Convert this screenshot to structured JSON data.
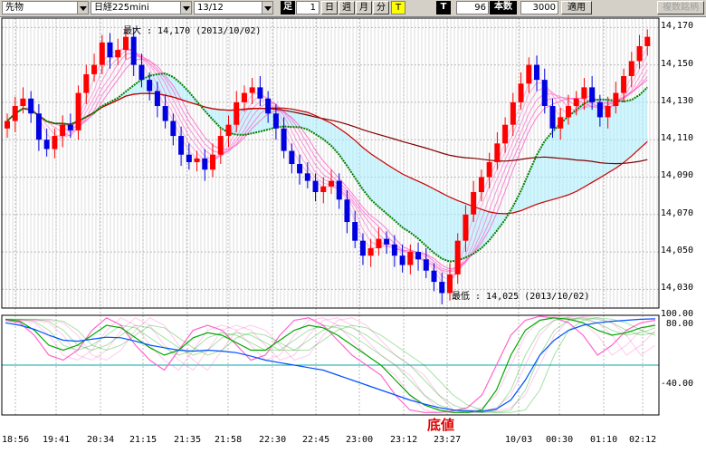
{
  "toolbar": {
    "market": "先物",
    "symbol": "日経225mini",
    "contract": "13/12",
    "bar_label": "足",
    "bar_value": "1",
    "tabs": [
      "日",
      "週",
      "月",
      "分"
    ],
    "t_button": "T",
    "t_label": "T",
    "count_value": "96",
    "count_label": "本数",
    "count2_value": "3000",
    "apply_label": "適用",
    "multi_label": "複数銘柄"
  },
  "annotations": {
    "max_label": "最大 : 14,170 (2013/10/02)",
    "min_label": "最低 : 14,025 (2013/10/02)",
    "bottom_label": "底値"
  },
  "colors": {
    "up_candle": "#ff0000",
    "down_candle": "#0000e0",
    "ma_short": "#ff66cc",
    "ma_medium": "#008000",
    "ma_long": "#cc0000",
    "ma_longest": "#800000",
    "fill": "#aaf0ff"
  },
  "chart_data": [
    {
      "type": "candlestick",
      "ylim": [
        14020,
        14175
      ],
      "y_ticks": [
        "14,170",
        "14,150",
        "14,130",
        "14,110",
        "14,090",
        "14,070",
        "14,050",
        "14,030"
      ],
      "x_ticks": [
        "18:56",
        "19:41",
        "20:34",
        "21:15",
        "21:35",
        "21:58",
        "22:30",
        "22:45",
        "23:00",
        "23:12",
        "23:27",
        "10/03",
        "00:30",
        "01:10",
        "02:12"
      ],
      "close": [
        14120,
        14128,
        14132,
        14124,
        14110,
        14105,
        14112,
        14118,
        14115,
        14135,
        14145,
        14150,
        14162,
        14154,
        14158,
        14165,
        14150,
        14142,
        14136,
        14128,
        14120,
        14112,
        14102,
        14098,
        14100,
        14094,
        14102,
        14112,
        14118,
        14130,
        14135,
        14138,
        14132,
        14124,
        14116,
        14104,
        14097,
        14092,
        14088,
        14082,
        14085,
        14088,
        14078,
        14066,
        14056,
        14048,
        14052,
        14057,
        14054,
        14048,
        14043,
        14050,
        14046,
        14040,
        14034,
        14028,
        14038,
        14056,
        14070,
        14082,
        14090,
        14098,
        14108,
        14118,
        14130,
        14140,
        14150,
        14142,
        14128,
        14116,
        14122,
        14128,
        14132,
        14138,
        14130,
        14122,
        14128,
        14135,
        14144,
        14152,
        14160,
        14165
      ],
      "moving_averages": [
        "short (pink bundle)",
        "medium (green)",
        "long (dark red)",
        "longest (maroon)"
      ],
      "max": {
        "value": 14170,
        "date": "2013/10/02"
      },
      "min": {
        "value": 14025,
        "date": "2013/10/02"
      }
    },
    {
      "type": "line",
      "ylim": [
        -100,
        100
      ],
      "y_ticks": [
        "100.00",
        "80.00",
        "-40.00"
      ],
      "series": [
        {
          "values": [
            90,
            85,
            60,
            20,
            10,
            30,
            70,
            95,
            80,
            40,
            10,
            -10,
            30,
            70,
            80,
            70,
            40,
            10,
            20,
            60,
            90,
            95,
            80,
            50,
            20,
            0,
            -20,
            -60,
            -90,
            -95,
            -95,
            -92,
            -85,
            -60,
            0,
            60,
            90,
            98,
            95,
            85,
            60,
            20,
            40,
            70,
            85,
            90
          ]
        },
        {
          "values": [
            92,
            88,
            70,
            40,
            30,
            40,
            60,
            80,
            75,
            55,
            35,
            20,
            30,
            55,
            65,
            60,
            45,
            30,
            30,
            50,
            70,
            80,
            75,
            60,
            40,
            20,
            0,
            -30,
            -60,
            -80,
            -90,
            -95,
            -95,
            -90,
            -50,
            20,
            70,
            90,
            95,
            92,
            85,
            70,
            60,
            65,
            75,
            80
          ]
        },
        {
          "values": [
            85,
            80,
            72,
            60,
            50,
            48,
            52,
            56,
            55,
            48,
            40,
            35,
            30,
            28,
            30,
            28,
            25,
            18,
            10,
            5,
            0,
            -5,
            -10,
            -20,
            -30,
            -40,
            -50,
            -60,
            -70,
            -78,
            -85,
            -90,
            -92,
            -93,
            -88,
            -70,
            -30,
            20,
            50,
            70,
            80,
            85,
            88,
            90,
            92,
            93
          ]
        }
      ]
    }
  ]
}
